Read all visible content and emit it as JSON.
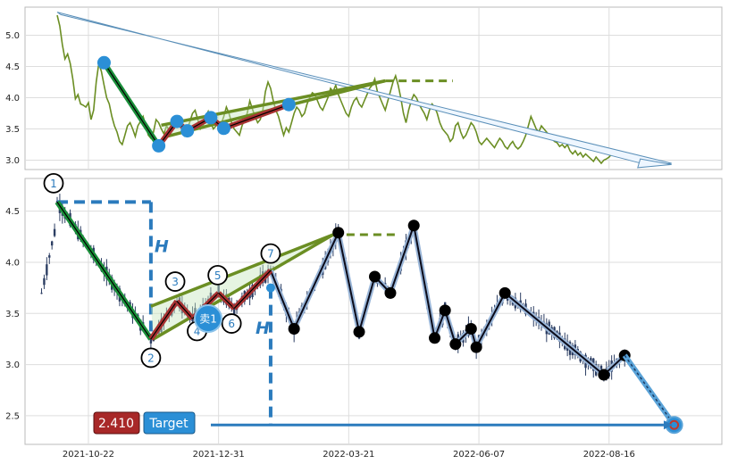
{
  "colors": {
    "price_line": "#6b8e23",
    "wave_green": "#1a8f3a",
    "wave_red": "#a83232",
    "marker_blue": "#2b8fd6",
    "trend_blue": "#2b7bbd",
    "candle": "#2c3e63",
    "zigzag": "#0b0b1a",
    "grid": "#dddddd",
    "badge_red": "#a82828",
    "badge_blue": "#2b8fd6"
  },
  "chart_data": [
    {
      "type": "line",
      "panel": "top",
      "ylim": [
        2.85,
        5.45
      ],
      "y_ticks": [
        "5.0",
        "4.5",
        "4.0",
        "3.5",
        "3.0"
      ],
      "y_tick_values": [
        5.0,
        4.5,
        4.0,
        3.5,
        3.0
      ],
      "x_range": [
        0,
        244
      ],
      "series": [
        {
          "values": [
            5.32,
            5.15,
            4.85,
            4.62,
            4.7,
            4.55,
            4.3,
            3.98,
            4.05,
            3.9,
            3.88,
            3.85,
            3.92,
            3.65,
            3.8,
            4.25,
            4.55,
            4.42,
            4.2,
            4.0,
            3.9,
            3.7,
            3.55,
            3.45,
            3.3,
            3.25,
            3.4,
            3.55,
            3.6,
            3.5,
            3.38,
            3.55,
            3.62,
            3.7,
            3.55,
            3.4,
            3.35,
            3.45,
            3.65,
            3.6,
            3.5,
            3.42,
            3.55,
            3.48,
            3.6,
            3.52,
            3.65,
            3.7,
            3.55,
            3.4,
            3.5,
            3.62,
            3.75,
            3.8,
            3.65,
            3.5,
            3.55,
            3.7,
            3.78,
            3.6,
            3.5,
            3.55,
            3.62,
            3.58,
            3.7,
            3.85,
            3.75,
            3.6,
            3.5,
            3.45,
            3.4,
            3.55,
            3.65,
            3.75,
            3.95,
            3.82,
            3.7,
            3.6,
            3.65,
            3.8,
            4.1,
            4.25,
            4.15,
            3.95,
            3.8,
            3.7,
            3.55,
            3.4,
            3.52,
            3.45,
            3.6,
            3.75,
            3.85,
            3.8,
            3.7,
            3.75,
            3.9,
            4.0,
            4.08,
            4.05,
            3.95,
            3.85,
            3.8,
            3.9,
            4.0,
            4.15,
            4.1,
            4.2,
            4.05,
            3.95,
            3.85,
            3.75,
            3.7,
            3.85,
            3.95,
            4.0,
            3.9,
            3.85,
            3.95,
            4.05,
            4.15,
            4.2,
            4.3,
            4.1,
            4.0,
            3.9,
            3.8,
            3.95,
            4.1,
            4.25,
            4.35,
            4.2,
            4.0,
            3.75,
            3.6,
            3.8,
            3.95,
            4.05,
            4.0,
            3.9,
            3.82,
            3.75,
            3.65,
            3.8,
            3.9,
            3.85,
            3.75,
            3.6,
            3.5,
            3.45,
            3.4,
            3.3,
            3.35,
            3.55,
            3.6,
            3.45,
            3.35,
            3.4,
            3.5,
            3.6,
            3.55,
            3.45,
            3.3,
            3.25,
            3.3,
            3.35,
            3.3,
            3.25,
            3.2,
            3.28,
            3.35,
            3.3,
            3.22,
            3.18,
            3.25,
            3.3,
            3.22,
            3.18,
            3.22,
            3.3,
            3.4,
            3.55,
            3.7,
            3.6,
            3.5,
            3.45,
            3.55,
            3.5,
            3.45,
            3.4,
            3.35,
            3.3,
            3.28,
            3.22,
            3.25,
            3.2,
            3.25,
            3.15,
            3.1,
            3.15,
            3.08,
            3.12,
            3.05,
            3.1,
            3.06,
            3.02,
            2.98,
            3.05,
            3.0,
            2.95,
            3.0,
            3.02,
            3.05,
            3.1,
            3.14
          ]
        }
      ]
    },
    {
      "type": "line",
      "panel": "bottom",
      "ylim": [
        2.22,
        4.82
      ],
      "y_ticks": [
        "4.5",
        "4.0",
        "3.5",
        "3.0",
        "2.5"
      ],
      "y_tick_values": [
        4.5,
        4.0,
        3.5,
        3.0,
        2.5
      ],
      "x_range": [
        0,
        244
      ],
      "x_ticks": [
        "2021-10-22",
        "2021-12-31",
        "2022-03-21",
        "2022-06-07",
        "2022-08-16"
      ],
      "x_tick_positions": [
        12,
        62,
        112,
        162,
        212
      ],
      "zigzag_points": [
        [
          0,
          4.59
        ],
        [
          36,
          3.25
        ],
        [
          46,
          3.62
        ],
        [
          52,
          3.45
        ],
        [
          62,
          3.7
        ],
        [
          68,
          3.55
        ],
        [
          82,
          3.92
        ],
        [
          91,
          3.35
        ],
        [
          108,
          4.29
        ],
        [
          116,
          3.32
        ],
        [
          122,
          3.86
        ],
        [
          128,
          3.7
        ],
        [
          137,
          4.36
        ],
        [
          145,
          3.26
        ],
        [
          149,
          3.53
        ],
        [
          153,
          3.2
        ],
        [
          159,
          3.35
        ],
        [
          161,
          3.17
        ],
        [
          172,
          3.7
        ],
        [
          210,
          2.9
        ],
        [
          218,
          3.09
        ]
      ],
      "black_dots": [
        [
          91,
          3.35
        ],
        [
          108,
          4.29
        ],
        [
          116,
          3.32
        ],
        [
          122,
          3.86
        ],
        [
          128,
          3.7
        ],
        [
          137,
          4.36
        ],
        [
          145,
          3.26
        ],
        [
          149,
          3.53
        ],
        [
          153,
          3.2
        ],
        [
          159,
          3.35
        ],
        [
          161,
          3.17
        ],
        [
          172,
          3.7
        ],
        [
          210,
          2.9
        ],
        [
          218,
          3.09
        ]
      ],
      "wave_labels": [
        "1",
        "2",
        "3",
        "4",
        "5",
        "6",
        "7"
      ],
      "H_label": "H",
      "sell_label": "卖1",
      "target_value": "2.410",
      "target_label": "Target",
      "target_price": 2.41
    }
  ]
}
